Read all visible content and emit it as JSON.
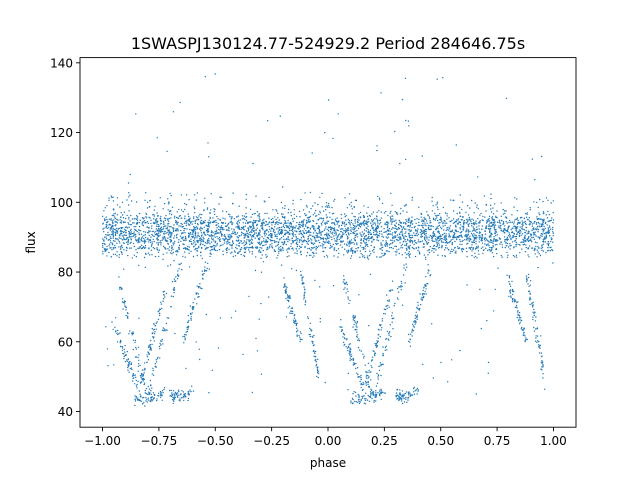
{
  "chart_data": {
    "type": "scatter",
    "title": "1SWASPJ130124.77-524929.2 Period 284646.75s",
    "xlabel": "phase",
    "ylabel": "flux",
    "xlim": [
      -1.1,
      1.1
    ],
    "ylim": [
      35.5,
      141.5
    ],
    "xticks": [
      -1.0,
      -0.75,
      -0.5,
      -0.25,
      0.0,
      0.25,
      0.5,
      0.75,
      1.0
    ],
    "xtick_labels": [
      "−1.00",
      "−0.75",
      "−0.50",
      "−0.25",
      "0.00",
      "0.25",
      "0.50",
      "0.75",
      "1.00"
    ],
    "yticks": [
      40,
      60,
      80,
      100,
      120,
      140
    ],
    "ytick_labels": [
      "40",
      "60",
      "80",
      "100",
      "120",
      "140"
    ],
    "grid": false,
    "legend": false,
    "point_color": "#1f77b4",
    "x_range": [
      -1.0,
      1.0
    ],
    "main_band": {
      "center": 91,
      "spread": 2.8
    },
    "scatter_above_band": {
      "typical_max": 103,
      "outlier_max": 137
    },
    "scatter_below_band": {
      "typical_min": 84
    },
    "dip_tracks": [
      {
        "x0": -0.86,
        "x1": -0.72,
        "y0": 44,
        "y1": 46
      },
      {
        "x0": -0.7,
        "x1": -0.6,
        "y0": 45,
        "y1": 46
      },
      {
        "x0": -0.95,
        "x1": -0.84,
        "y0": 65,
        "y1": 46
      },
      {
        "x0": -0.93,
        "x1": -0.8,
        "y0": 78,
        "y1": 44
      },
      {
        "x0": -0.8,
        "x1": -0.64,
        "y0": 44,
        "y1": 86
      },
      {
        "x0": -0.84,
        "x1": -0.72,
        "y0": 46,
        "y1": 75
      },
      {
        "x0": -0.64,
        "x1": -0.54,
        "y0": 60,
        "y1": 82
      },
      {
        "x0": -0.2,
        "x1": -0.12,
        "y0": 78,
        "y1": 60
      },
      {
        "x0": -0.12,
        "x1": -0.04,
        "y0": 80,
        "y1": 50
      },
      {
        "x0": 0.1,
        "x1": 0.25,
        "y0": 44,
        "y1": 46
      },
      {
        "x0": 0.3,
        "x1": 0.4,
        "y0": 45,
        "y1": 46
      },
      {
        "x0": 0.05,
        "x1": 0.16,
        "y0": 65,
        "y1": 46
      },
      {
        "x0": 0.07,
        "x1": 0.2,
        "y0": 78,
        "y1": 44
      },
      {
        "x0": 0.2,
        "x1": 0.36,
        "y0": 44,
        "y1": 86
      },
      {
        "x0": 0.16,
        "x1": 0.28,
        "y0": 46,
        "y1": 75
      },
      {
        "x0": 0.36,
        "x1": 0.46,
        "y0": 60,
        "y1": 82
      },
      {
        "x0": 0.8,
        "x1": 0.88,
        "y0": 78,
        "y1": 60
      },
      {
        "x0": 0.88,
        "x1": 0.96,
        "y0": 80,
        "y1": 50
      }
    ]
  }
}
